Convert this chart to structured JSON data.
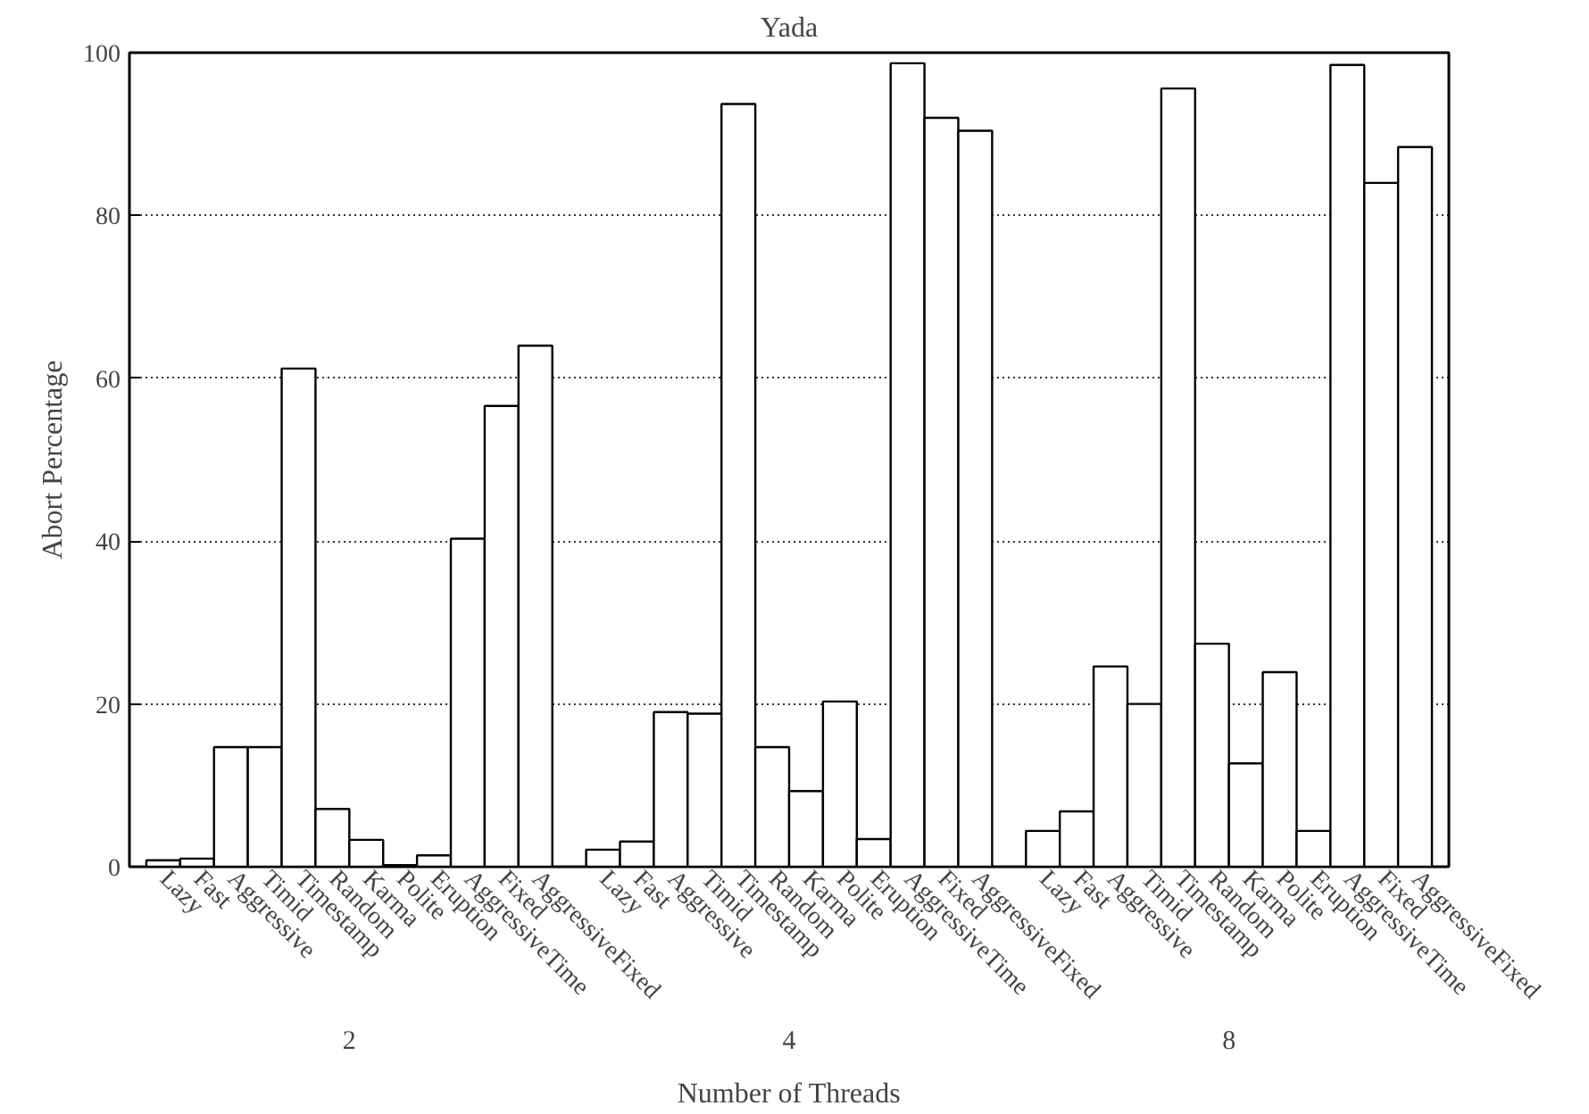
{
  "chart_data": {
    "type": "bar",
    "title": "Yada",
    "xlabel": "Number of Threads",
    "ylabel": "Abort Percentage",
    "categories": [
      "Lazy",
      "Fast",
      "Aggressive",
      "Timid",
      "Timestamp",
      "Random",
      "Karma",
      "Polite",
      "Eruption",
      "AggressiveTime",
      "Fixed",
      "AggressiveFixed",
      "Lazy",
      "Fast",
      "Aggressive",
      "Timid",
      "Timestamp",
      "Random",
      "Karma",
      "Polite",
      "Eruption",
      "AggressiveTime",
      "Fixed",
      "AggressiveFixed",
      "Lazy",
      "Fast",
      "Aggressive",
      "Timid",
      "Timestamp",
      "Random",
      "Karma",
      "Polite",
      "Eruption",
      "AggressiveTime",
      "Fixed",
      "AggressiveFixed"
    ],
    "values": [
      0.8,
      1.0,
      14.7,
      14.7,
      61.2,
      7.1,
      3.3,
      0.2,
      1.4,
      40.3,
      56.6,
      64.0,
      2.1,
      3.1,
      19.0,
      18.8,
      93.7,
      14.7,
      9.3,
      20.3,
      3.4,
      98.7,
      92.0,
      90.4,
      4.4,
      6.8,
      24.6,
      20.0,
      95.6,
      27.4,
      12.7,
      23.9,
      4.4,
      98.5,
      84.0,
      88.4
    ],
    "color": "#ffffff",
    "annotations": [
      "2",
      "4",
      "8"
    ],
    "ylim": [
      0,
      100
    ],
    "yticks": [
      0,
      20,
      40,
      60,
      80,
      100
    ],
    "grid": "y"
  }
}
